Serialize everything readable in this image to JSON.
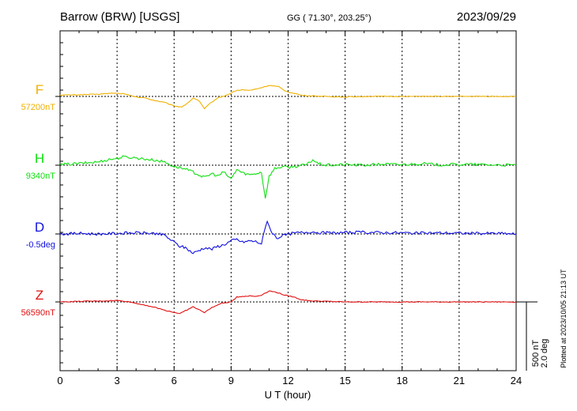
{
  "header": {
    "station": "Barrow (BRW)  [USGS]",
    "coords": "GG ( 71.30°, 203.25°)",
    "date": "2023/09/29"
  },
  "plotted_note": "Plotted at 2023/10/05 21:13 UT",
  "chart_data": {
    "type": "line",
    "xlabel": "U T (hour)",
    "xlim": [
      0,
      24
    ],
    "xticks": [
      "0",
      "3",
      "6",
      "9",
      "12",
      "15",
      "18",
      "21",
      "24"
    ],
    "scale_bar": {
      "line1": "500 nT",
      "line2": "2.0 deg"
    },
    "units_per_bar": 500,
    "series": [
      {
        "name": "F",
        "baseline_label": "57200nT",
        "color": "#f0b000",
        "points": [
          [
            0,
            5
          ],
          [
            1,
            6
          ],
          [
            2,
            8
          ],
          [
            2.8,
            12
          ],
          [
            3.3,
            10
          ],
          [
            4,
            -2
          ],
          [
            4.5,
            -6
          ],
          [
            5,
            -15
          ],
          [
            5.5,
            -22
          ],
          [
            6,
            -35
          ],
          [
            6.4,
            -38
          ],
          [
            6.8,
            -20
          ],
          [
            7,
            -5
          ],
          [
            7.3,
            -15
          ],
          [
            7.6,
            -45
          ],
          [
            7.9,
            -25
          ],
          [
            8.3,
            -5
          ],
          [
            8.8,
            5
          ],
          [
            9.2,
            20
          ],
          [
            9.6,
            24
          ],
          [
            10,
            22
          ],
          [
            10.5,
            30
          ],
          [
            11,
            40
          ],
          [
            11.5,
            35
          ],
          [
            11.9,
            18
          ],
          [
            12.3,
            12
          ],
          [
            12.7,
            4
          ],
          [
            13.2,
            2
          ],
          [
            14,
            0
          ],
          [
            15,
            -2
          ],
          [
            16,
            0
          ],
          [
            18,
            0
          ],
          [
            20,
            0
          ],
          [
            22,
            0
          ],
          [
            24,
            0
          ]
        ]
      },
      {
        "name": "H",
        "baseline_label": "9340nT",
        "color": "#10e010",
        "points": [
          [
            0,
            2
          ],
          [
            1,
            6
          ],
          [
            2,
            12
          ],
          [
            2.5,
            20
          ],
          [
            3,
            25
          ],
          [
            3.3,
            30
          ],
          [
            3.8,
            28
          ],
          [
            4.3,
            24
          ],
          [
            5,
            18
          ],
          [
            5.5,
            12
          ],
          [
            6,
            -5
          ],
          [
            6.3,
            -8
          ],
          [
            6.6,
            -15
          ],
          [
            7,
            -25
          ],
          [
            7.3,
            -35
          ],
          [
            7.6,
            -45
          ],
          [
            8,
            -30
          ],
          [
            8.3,
            -40
          ],
          [
            8.6,
            -25
          ],
          [
            9,
            -50
          ],
          [
            9.3,
            -15
          ],
          [
            9.6,
            -28
          ],
          [
            10,
            -35
          ],
          [
            10.3,
            -30
          ],
          [
            10.6,
            -25
          ],
          [
            10.8,
            -120
          ],
          [
            11,
            -40
          ],
          [
            11.3,
            -12
          ],
          [
            11.7,
            -5
          ],
          [
            12,
            -8
          ],
          [
            12.5,
            -3
          ],
          [
            13,
            2
          ],
          [
            13.3,
            20
          ],
          [
            13.6,
            5
          ],
          [
            14,
            0
          ],
          [
            15,
            2
          ],
          [
            16,
            0
          ],
          [
            17,
            4
          ],
          [
            18,
            2
          ],
          [
            19,
            6
          ],
          [
            20,
            1
          ],
          [
            21,
            3
          ],
          [
            22,
            2
          ],
          [
            24,
            0
          ]
        ]
      },
      {
        "name": "D",
        "baseline_label": "-0.5deg",
        "color": "#1010e0",
        "points": [
          [
            0,
            0
          ],
          [
            1,
            2
          ],
          [
            2,
            0
          ],
          [
            3,
            2
          ],
          [
            4,
            4
          ],
          [
            5,
            2
          ],
          [
            5.5,
            -5
          ],
          [
            6,
            -30
          ],
          [
            6.3,
            -45
          ],
          [
            6.6,
            -50
          ],
          [
            7,
            -70
          ],
          [
            7.3,
            -60
          ],
          [
            7.6,
            -50
          ],
          [
            8,
            -55
          ],
          [
            8.3,
            -45
          ],
          [
            8.6,
            -40
          ],
          [
            9,
            -25
          ],
          [
            9.3,
            -20
          ],
          [
            9.6,
            -30
          ],
          [
            10,
            -25
          ],
          [
            10.3,
            -28
          ],
          [
            10.6,
            -35
          ],
          [
            10.9,
            50
          ],
          [
            11.1,
            10
          ],
          [
            11.4,
            -15
          ],
          [
            11.8,
            -5
          ],
          [
            12.2,
            2
          ],
          [
            12.7,
            5
          ],
          [
            13.2,
            8
          ],
          [
            13.7,
            5
          ],
          [
            14.2,
            3
          ],
          [
            15,
            5
          ],
          [
            16,
            6
          ],
          [
            17,
            5
          ],
          [
            18,
            4
          ],
          [
            19,
            3
          ],
          [
            20,
            4
          ],
          [
            21,
            3
          ],
          [
            22,
            2
          ],
          [
            23,
            2
          ],
          [
            24,
            0
          ]
        ]
      },
      {
        "name": "Z",
        "baseline_label": "56590nT",
        "color": "#e01010",
        "points": [
          [
            0,
            0
          ],
          [
            1,
            2
          ],
          [
            2,
            3
          ],
          [
            3,
            5
          ],
          [
            3.5,
            2
          ],
          [
            4,
            -5
          ],
          [
            4.5,
            -12
          ],
          [
            5,
            -20
          ],
          [
            5.5,
            -30
          ],
          [
            6,
            -38
          ],
          [
            6.3,
            -42
          ],
          [
            6.6,
            -32
          ],
          [
            7,
            -18
          ],
          [
            7.3,
            -28
          ],
          [
            7.6,
            -38
          ],
          [
            8,
            -20
          ],
          [
            8.5,
            -5
          ],
          [
            9,
            0
          ],
          [
            9.3,
            18
          ],
          [
            9.6,
            20
          ],
          [
            10,
            22
          ],
          [
            10.3,
            20
          ],
          [
            10.6,
            25
          ],
          [
            11,
            40
          ],
          [
            11.4,
            35
          ],
          [
            11.8,
            25
          ],
          [
            12.3,
            18
          ],
          [
            12.7,
            8
          ],
          [
            13.2,
            4
          ],
          [
            14,
            2
          ],
          [
            15,
            0
          ],
          [
            16,
            0
          ],
          [
            18,
            0
          ],
          [
            20,
            0
          ],
          [
            22,
            0
          ],
          [
            24,
            0
          ]
        ]
      }
    ]
  }
}
